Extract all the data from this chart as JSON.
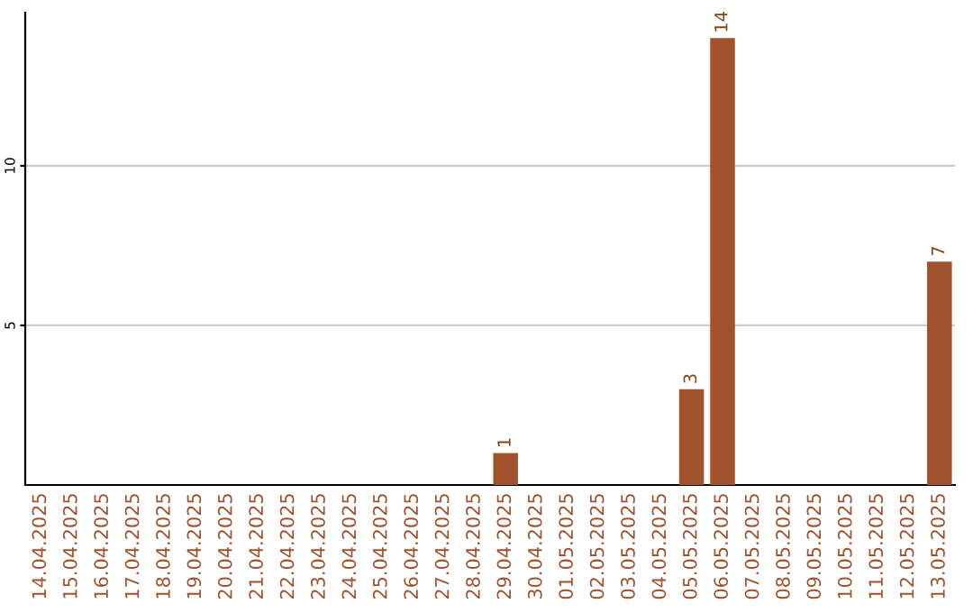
{
  "chart_data": {
    "type": "bar",
    "categories": [
      "14.04.2025",
      "15.04.2025",
      "16.04.2025",
      "17.04.2025",
      "18.04.2025",
      "19.04.2025",
      "20.04.2025",
      "21.04.2025",
      "22.04.2025",
      "23.04.2025",
      "24.04.2025",
      "25.04.2025",
      "26.04.2025",
      "27.04.2025",
      "28.04.2025",
      "29.04.2025",
      "30.04.2025",
      "01.05.2025",
      "02.05.2025",
      "03.05.2025",
      "04.05.2025",
      "05.05.2025",
      "06.05.2025",
      "07.05.2025",
      "08.05.2025",
      "09.05.2025",
      "10.05.2025",
      "11.05.2025",
      "12.05.2025",
      "13.05.2025"
    ],
    "values": [
      0,
      0,
      0,
      0,
      0,
      0,
      0,
      0,
      0,
      0,
      0,
      0,
      0,
      0,
      0,
      1,
      0,
      0,
      0,
      0,
      0,
      3,
      14,
      0,
      0,
      0,
      0,
      0,
      0,
      7
    ],
    "value_labels": [
      null,
      null,
      null,
      null,
      null,
      null,
      null,
      null,
      null,
      null,
      null,
      null,
      null,
      null,
      null,
      "1",
      null,
      null,
      null,
      null,
      null,
      "3",
      "14",
      null,
      null,
      null,
      null,
      null,
      null,
      "7"
    ],
    "color": "#a0522d",
    "ylim": [
      0,
      14.8
    ],
    "yticks": [
      5,
      10
    ],
    "grid": "y"
  }
}
